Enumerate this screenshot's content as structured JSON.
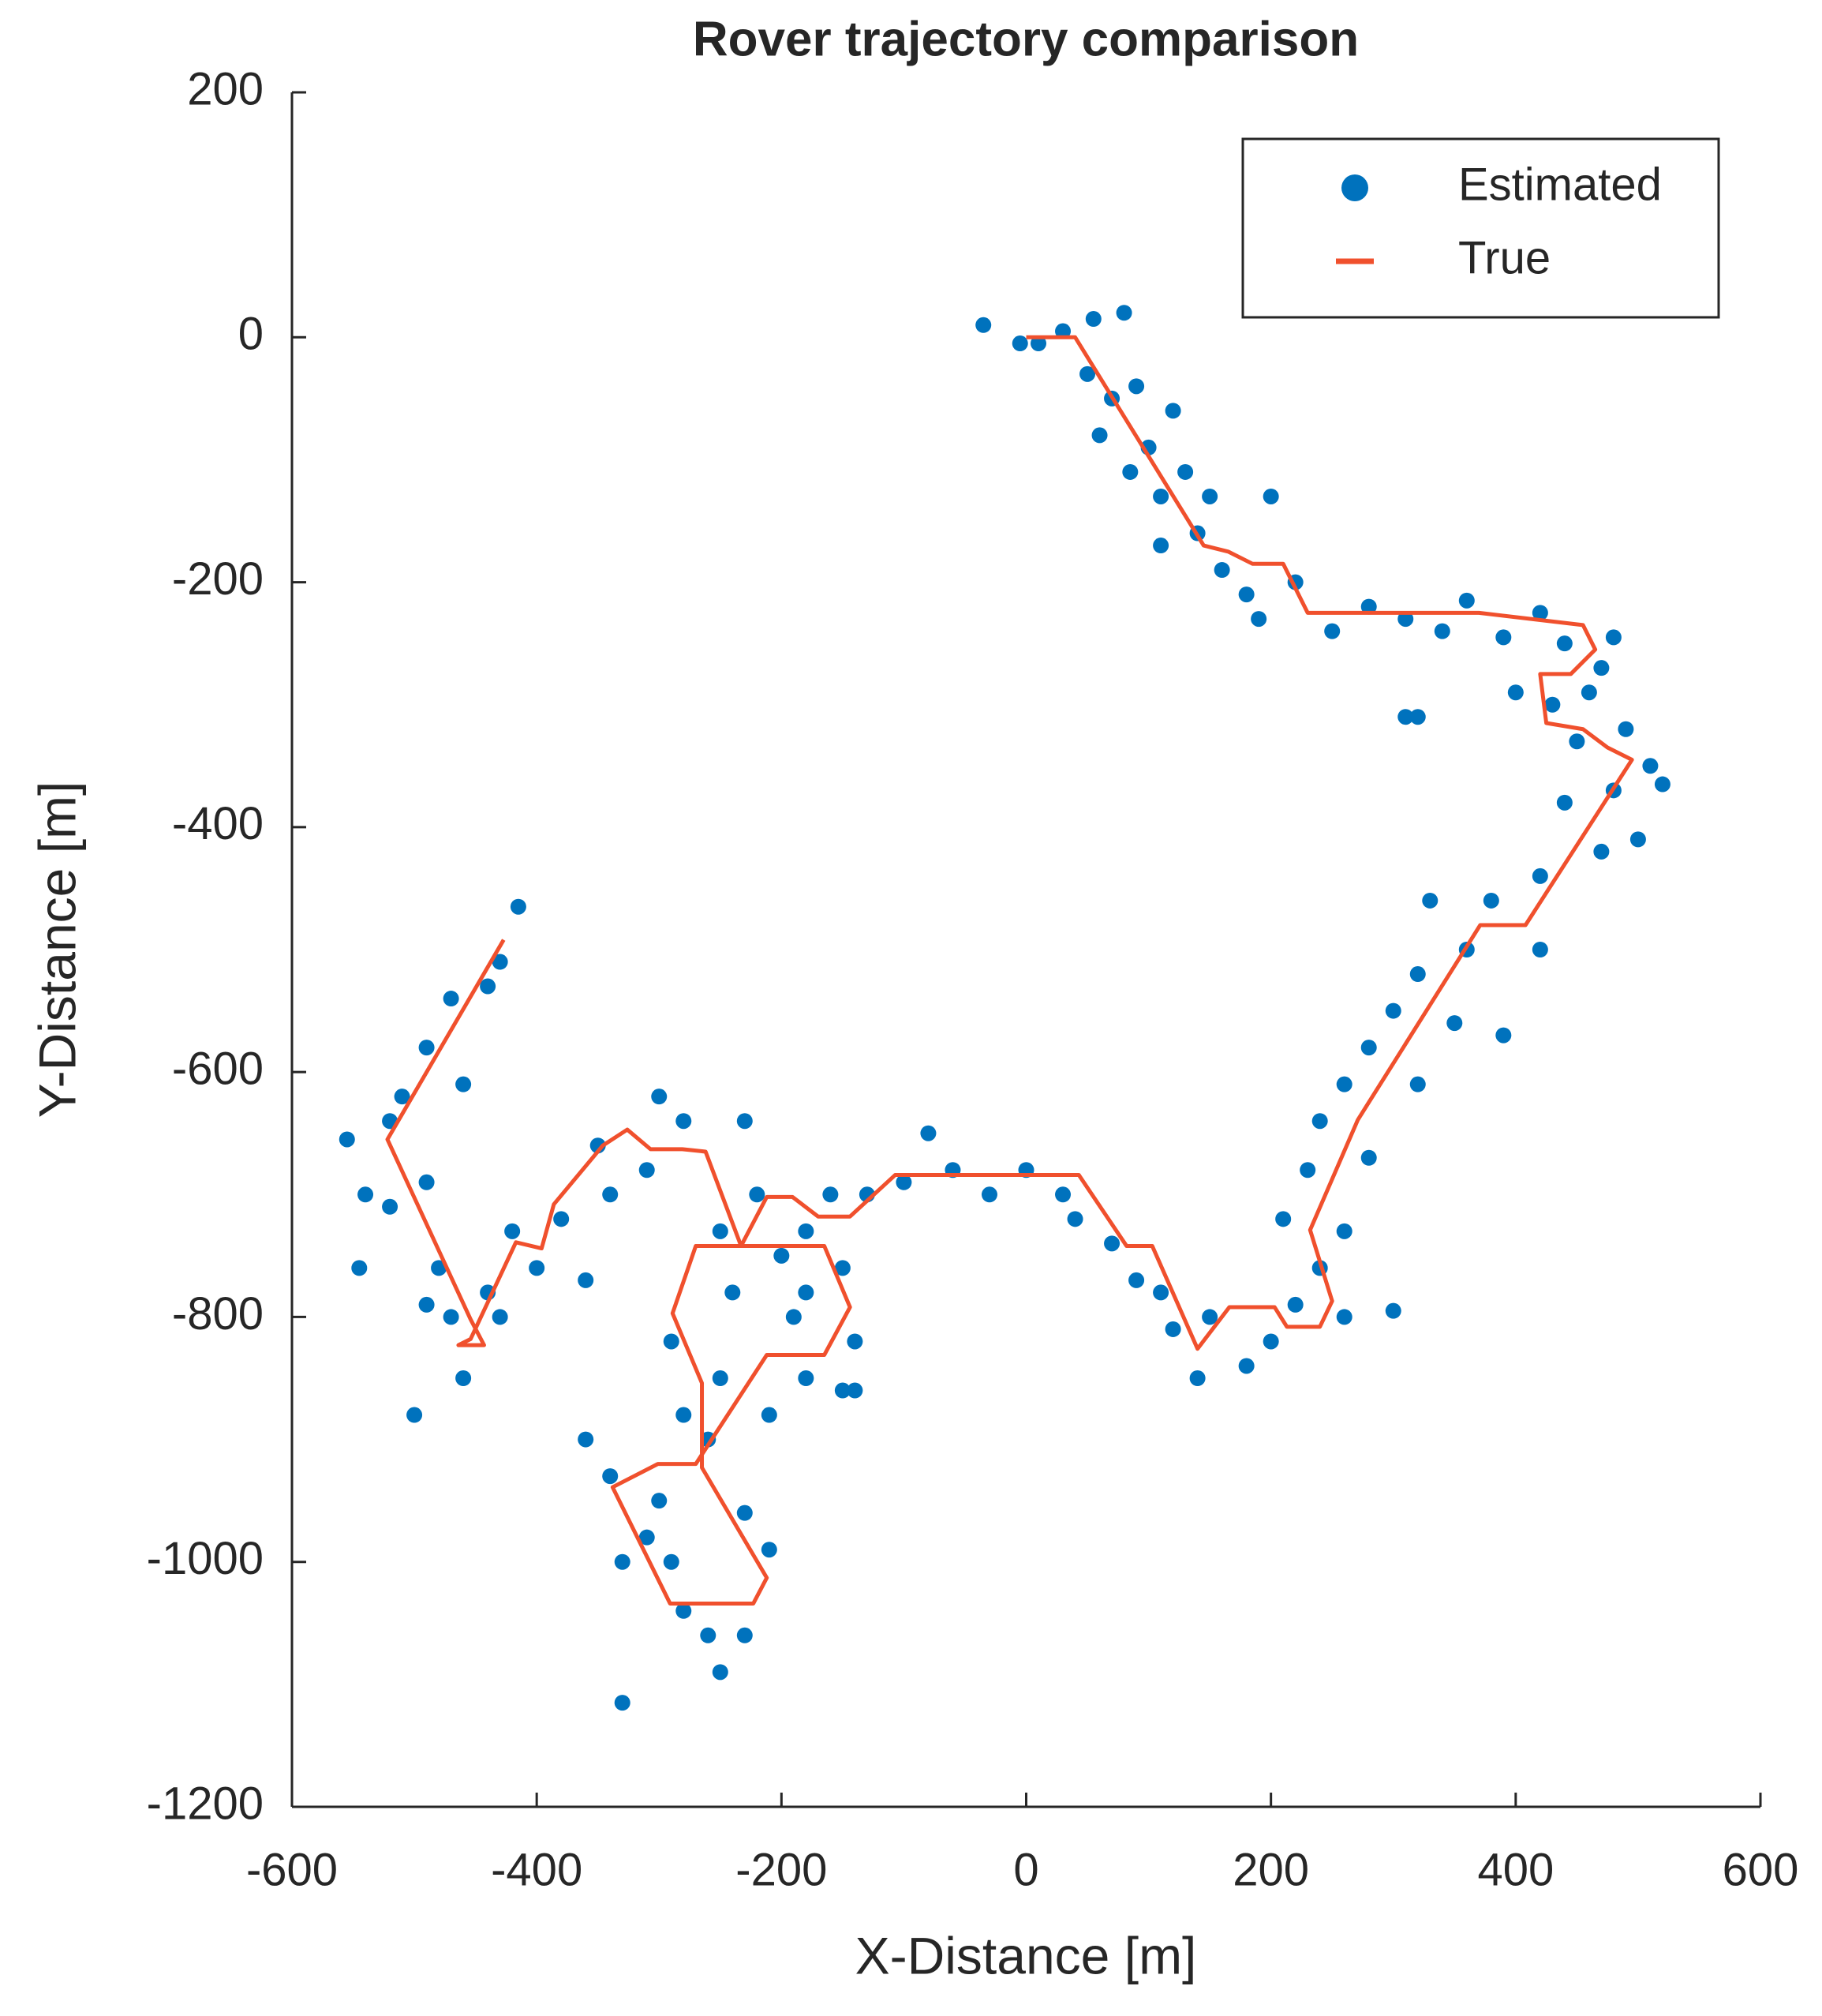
{
  "chart_data": {
    "type": "scatter",
    "title": "Rover trajectory comparison",
    "x_label": "X-Distance [m]",
    "y_label": "Y-Distance [m]",
    "xlim": [
      -600,
      600
    ],
    "ylim": [
      -1200,
      200
    ],
    "xticks": [
      -600,
      -400,
      -200,
      0,
      200,
      400,
      600
    ],
    "yticks": [
      -1200,
      -1000,
      -800,
      -600,
      -400,
      -200,
      0,
      200
    ],
    "legend": "upper right",
    "grid": false,
    "series": [
      {
        "name": "Estimated",
        "color": "#0072bd",
        "mode": "markers",
        "x": [
          -35,
          -5,
          10,
          30,
          55,
          80,
          50,
          70,
          90,
          60,
          100,
          85,
          120,
          110,
          130,
          150,
          140,
          110,
          160,
          200,
          180,
          220,
          190,
          250,
          280,
          310,
          340,
          360,
          390,
          420,
          440,
          480,
          470,
          400,
          430,
          460,
          320,
          450,
          490,
          510,
          520,
          480,
          440,
          470,
          500,
          420,
          380,
          330,
          360,
          420,
          320,
          300,
          350,
          390,
          280,
          260,
          320,
          240,
          280,
          230,
          210,
          260,
          240,
          220,
          260,
          300,
          200,
          180,
          150,
          140,
          120,
          110,
          90,
          70,
          30,
          0,
          -30,
          -60,
          -100,
          -130,
          -160,
          -180,
          -150,
          -140,
          -150,
          -180,
          -200,
          -220,
          -250,
          -240,
          -190,
          -180,
          -210,
          -250,
          -260,
          -280,
          -290,
          -300,
          -310,
          -330,
          -340,
          -360,
          -280,
          -260,
          -250,
          -230,
          -210,
          -230,
          -330,
          -290,
          -300,
          -310,
          -340,
          -280,
          -350,
          -380,
          -400,
          -420,
          -440,
          -470,
          -480,
          -460,
          -500,
          -430,
          -490,
          -520,
          -540,
          -555,
          -545,
          -510,
          -490,
          -470,
          -440,
          -415,
          -430,
          -460,
          -520,
          -490,
          -360,
          -140,
          40,
          -80,
          -230,
          310
        ],
        "y": [
          10,
          -5,
          -5,
          5,
          15,
          20,
          -30,
          -50,
          -40,
          -80,
          -90,
          -110,
          -60,
          -130,
          -110,
          -130,
          -160,
          -170,
          -190,
          -130,
          -210,
          -200,
          -230,
          -240,
          -220,
          -230,
          -240,
          -215,
          -245,
          -225,
          -250,
          -245,
          -270,
          -290,
          -300,
          -290,
          -310,
          -330,
          -320,
          -350,
          -365,
          -370,
          -380,
          -420,
          -410,
          -440,
          -460,
          -460,
          -500,
          -500,
          -520,
          -550,
          -560,
          -570,
          -580,
          -610,
          -610,
          -640,
          -670,
          -680,
          -720,
          -730,
          -760,
          -790,
          -800,
          -795,
          -820,
          -840,
          -800,
          -850,
          -810,
          -780,
          -770,
          -740,
          -700,
          -680,
          -700,
          -680,
          -690,
          -700,
          -700,
          -730,
          -760,
          -820,
          -860,
          -780,
          -750,
          -700,
          -730,
          -780,
          -800,
          -850,
          -880,
          -850,
          -900,
          -880,
          -820,
          -950,
          -980,
          -1000,
          -930,
          -900,
          -1040,
          -1060,
          -1090,
          -1060,
          -990,
          -960,
          -1115,
          -1000,
          -620,
          -680,
          -700,
          -640,
          -660,
          -720,
          -760,
          -730,
          -780,
          -800,
          -760,
          -850,
          -880,
          -800,
          -690,
          -710,
          -700,
          -655,
          -760,
          -620,
          -580,
          -540,
          -530,
          -465,
          -510,
          -610,
          -640,
          -790,
          -770,
          -860,
          -720,
          -650,
          -640,
          -310
        ]
      },
      {
        "name": "True",
        "color": "#f0502d",
        "mode": "lines",
        "x": [
          0,
          40,
          145,
          165,
          185,
          210,
          230,
          370,
          455,
          465,
          445,
          420,
          425,
          455,
          475,
          495,
          408,
          371,
          271,
          232,
          250,
          240,
          213,
          203,
          166,
          140,
          103,
          82,
          43,
          -107,
          -144,
          -170,
          -191,
          -212,
          -233,
          -165,
          -144,
          -165,
          -212,
          -270,
          -301,
          -338,
          -291,
          -223,
          -212,
          -265,
          -265,
          -289,
          -270,
          -233,
          -262,
          -281,
          -307,
          -326,
          -346,
          -386,
          -396,
          -417,
          -454,
          -464,
          -443,
          -454,
          -522,
          -427
        ],
        "y": [
          0,
          0,
          -170,
          -175,
          -185,
          -185,
          -225,
          -225,
          -235,
          -255,
          -275,
          -275,
          -315,
          -320,
          -335,
          -345,
          -480,
          -480,
          -639,
          -729,
          -787,
          -808,
          -808,
          -792,
          -792,
          -826,
          -742,
          -742,
          -684,
          -684,
          -718,
          -718,
          -702,
          -702,
          -742,
          -742,
          -792,
          -831,
          -831,
          -920,
          -920,
          -939,
          -1034,
          -1034,
          -1013,
          -923,
          -854,
          -797,
          -742,
          -742,
          -665,
          -663,
          -663,
          -647,
          -660,
          -708,
          -744,
          -739,
          -818,
          -823,
          -823,
          -802,
          -655,
          -492
        ]
      }
    ]
  }
}
